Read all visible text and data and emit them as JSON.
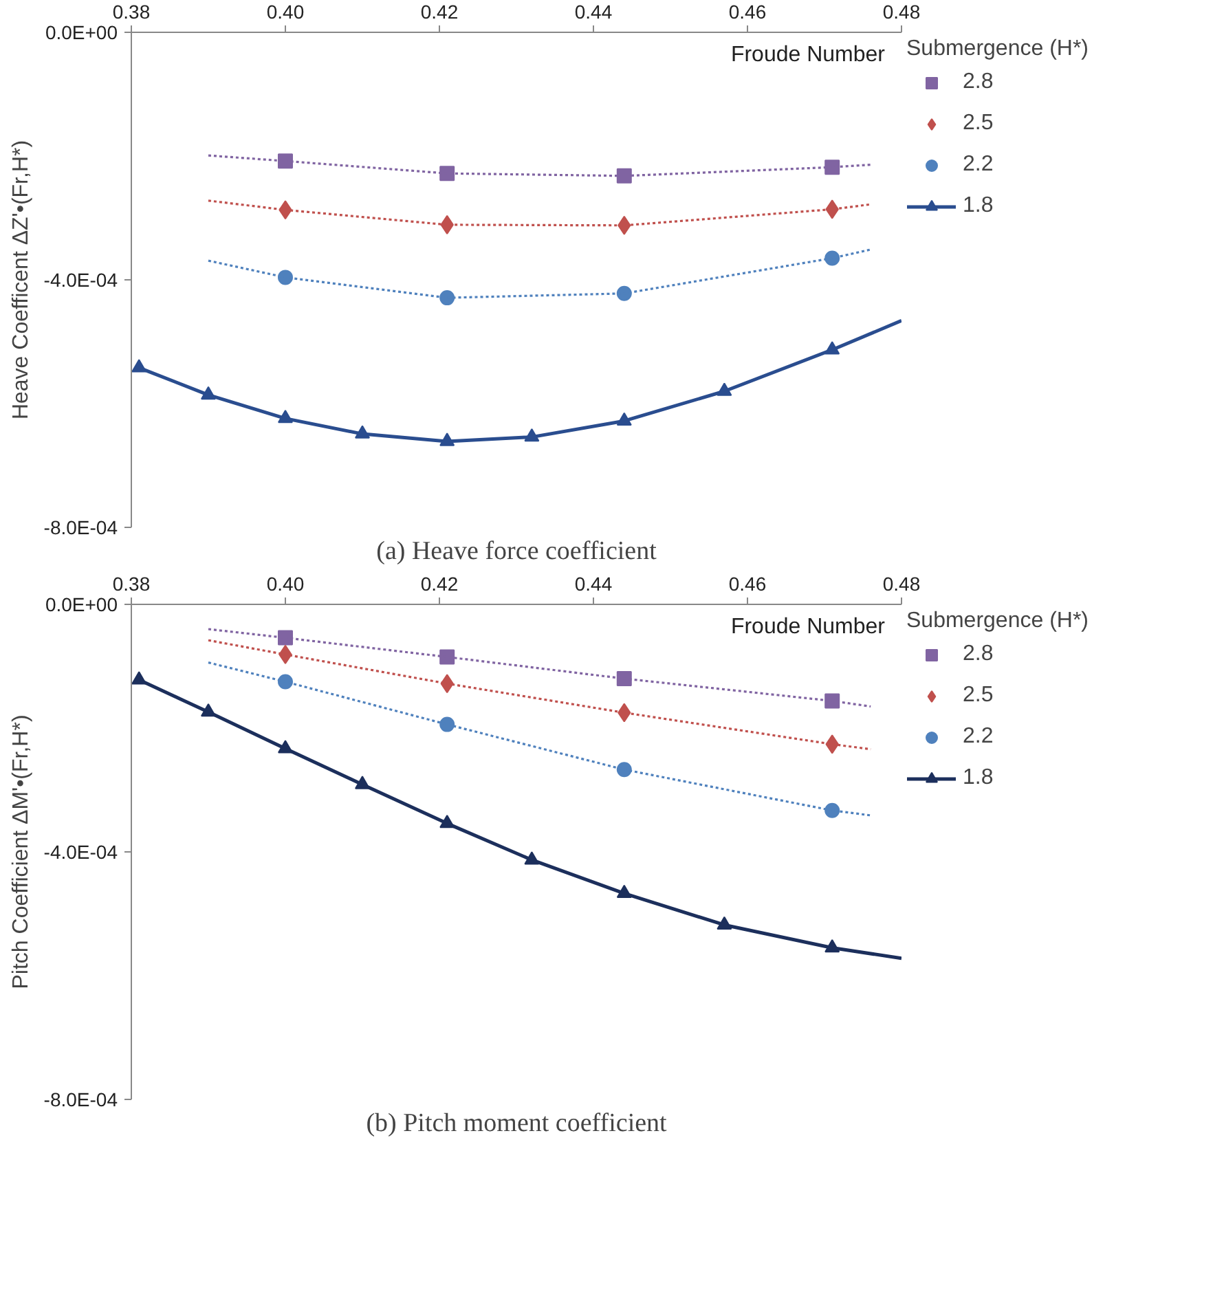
{
  "chart_data": [
    {
      "type": "line",
      "title": "(a) Heave force coefficient",
      "xlabel": "Froude Number",
      "ylabel": "Heave Coefficent ΔZ'•(Fr,H*)",
      "legend_title": "Submergence (H*)",
      "xlim": [
        0.38,
        0.48
      ],
      "xticks": [
        0.38,
        {
          "value": 0.4,
          "label": "0.40"
        },
        0.42,
        0.44,
        0.46,
        0.48
      ],
      "ylim": [
        -0.0008,
        0
      ],
      "yticks": [
        {
          "value": 0,
          "label": "0.0E+00"
        },
        {
          "value": -0.0004,
          "label": "-4.0E-04"
        },
        {
          "value": -0.0008,
          "label": "-8.0E-04"
        }
      ],
      "grid": false,
      "legend": "right",
      "series": [
        {
          "name": "2.8",
          "type": "scatter",
          "marker": "square",
          "color": "#8064a2",
          "x": [
            0.4,
            0.421,
            0.444,
            0.471
          ],
          "values": [
            -0.000208,
            -0.000228,
            -0.000232,
            -0.000218
          ]
        },
        {
          "name": "2.5",
          "type": "scatter",
          "marker": "diamond",
          "color": "#c0504d",
          "x": [
            0.4,
            0.421,
            0.444,
            0.471
          ],
          "values": [
            -0.000287,
            -0.000311,
            -0.000312,
            -0.000286
          ]
        },
        {
          "name": "2.2",
          "type": "scatter",
          "marker": "circle",
          "color": "#4f81bd",
          "x": [
            0.4,
            0.421,
            0.444,
            0.471
          ],
          "values": [
            -0.000396,
            -0.000429,
            -0.000422,
            -0.000365
          ]
        },
        {
          "name": "1.8",
          "type": "line",
          "marker": "triangle",
          "line_style": "solid",
          "color": "#2a4d8f",
          "x": [
            0.381,
            0.39,
            0.4,
            0.41,
            0.421,
            0.432,
            0.444,
            0.457,
            0.471
          ],
          "values": [
            -0.000542,
            -0.000586,
            -0.000624,
            -0.000649,
            -0.000661,
            -0.000654,
            -0.000628,
            -0.00058,
            -0.000513
          ]
        },
        {
          "type": "line",
          "marker": "none",
          "line_style": "solid",
          "color": "#2a4d8f",
          "x": [
            0.471,
            0.48
          ],
          "values": [
            -0.000513,
            -0.000466
          ]
        },
        {
          "type": "line",
          "marker": "none",
          "line_style": "dotted",
          "color": "#8064a2",
          "x": [
            0.39,
            0.4,
            0.421,
            0.444,
            0.471,
            0.476
          ],
          "values": [
            -0.000199,
            -0.000208,
            -0.000228,
            -0.000232,
            -0.000218,
            -0.000214
          ]
        },
        {
          "type": "line",
          "marker": "none",
          "line_style": "dotted",
          "color": "#c0504d",
          "x": [
            0.39,
            0.4,
            0.421,
            0.444,
            0.471,
            0.476
          ],
          "values": [
            -0.000272,
            -0.000287,
            -0.000311,
            -0.000312,
            -0.000286,
            -0.000278
          ]
        },
        {
          "type": "line",
          "marker": "none",
          "line_style": "dotted",
          "color": "#4f81bd",
          "x": [
            0.39,
            0.4,
            0.421,
            0.444,
            0.471,
            0.476
          ],
          "values": [
            -0.000369,
            -0.000396,
            -0.000429,
            -0.000422,
            -0.000365,
            -0.000351
          ]
        }
      ]
    },
    {
      "type": "line",
      "title": "(b) Pitch moment coefficient",
      "xlabel": "Froude Number",
      "ylabel": "Pitch Coefficient ΔM'•(Fr,H*)",
      "legend_title": "Submergence (H*)",
      "xlim": [
        0.38,
        0.48
      ],
      "xticks": [
        0.38,
        {
          "value": 0.4,
          "label": "0.40"
        },
        0.42,
        0.44,
        0.46,
        0.48
      ],
      "ylim": [
        -0.0008,
        0
      ],
      "yticks": [
        {
          "value": 0,
          "label": "0.0E+00"
        },
        {
          "value": -0.0004,
          "label": "-4.0E-04"
        },
        {
          "value": -0.0008,
          "label": "-8.0E-04"
        }
      ],
      "grid": false,
      "legend": "right",
      "series": [
        {
          "name": "2.8",
          "type": "scatter",
          "marker": "square",
          "color": "#8064a2",
          "x": [
            0.4,
            0.421,
            0.444,
            0.471
          ],
          "values": [
            -5.4e-05,
            -8.5e-05,
            -0.00012,
            -0.000156
          ]
        },
        {
          "name": "2.5",
          "type": "scatter",
          "marker": "diamond",
          "color": "#c0504d",
          "x": [
            0.4,
            0.421,
            0.444,
            0.471
          ],
          "values": [
            -8.1e-05,
            -0.000128,
            -0.000175,
            -0.000226
          ]
        },
        {
          "name": "2.2",
          "type": "scatter",
          "marker": "circle",
          "color": "#4f81bd",
          "x": [
            0.4,
            0.421,
            0.444,
            0.471
          ],
          "values": [
            -0.000125,
            -0.000194,
            -0.000267,
            -0.000333
          ]
        },
        {
          "name": "1.8",
          "type": "line",
          "marker": "triangle",
          "line_style": "solid",
          "color": "#1c2f5c",
          "x": [
            0.381,
            0.39,
            0.4,
            0.41,
            0.421,
            0.432,
            0.444,
            0.457,
            0.471
          ],
          "values": [
            -0.000122,
            -0.000174,
            -0.000233,
            -0.000291,
            -0.000354,
            -0.000413,
            -0.000467,
            -0.000518,
            -0.000555
          ]
        },
        {
          "type": "line",
          "marker": "none",
          "line_style": "solid",
          "color": "#1c2f5c",
          "x": [
            0.471,
            0.48
          ],
          "values": [
            -0.000555,
            -0.000572
          ]
        },
        {
          "type": "line",
          "marker": "none",
          "line_style": "dotted",
          "color": "#8064a2",
          "x": [
            0.39,
            0.4,
            0.421,
            0.444,
            0.471,
            0.476
          ],
          "values": [
            -4e-05,
            -5.4e-05,
            -8.5e-05,
            -0.00012,
            -0.000156,
            -0.000165
          ]
        },
        {
          "type": "line",
          "marker": "none",
          "line_style": "dotted",
          "color": "#c0504d",
          "x": [
            0.39,
            0.4,
            0.421,
            0.444,
            0.471,
            0.476
          ],
          "values": [
            -5.8e-05,
            -8.1e-05,
            -0.000128,
            -0.000175,
            -0.000226,
            -0.000234
          ]
        },
        {
          "type": "line",
          "marker": "none",
          "line_style": "dotted",
          "color": "#4f81bd",
          "x": [
            0.39,
            0.4,
            0.421,
            0.444,
            0.471,
            0.476
          ],
          "values": [
            -9.4e-05,
            -0.000125,
            -0.000194,
            -0.000267,
            -0.000333,
            -0.000341
          ]
        }
      ]
    }
  ]
}
